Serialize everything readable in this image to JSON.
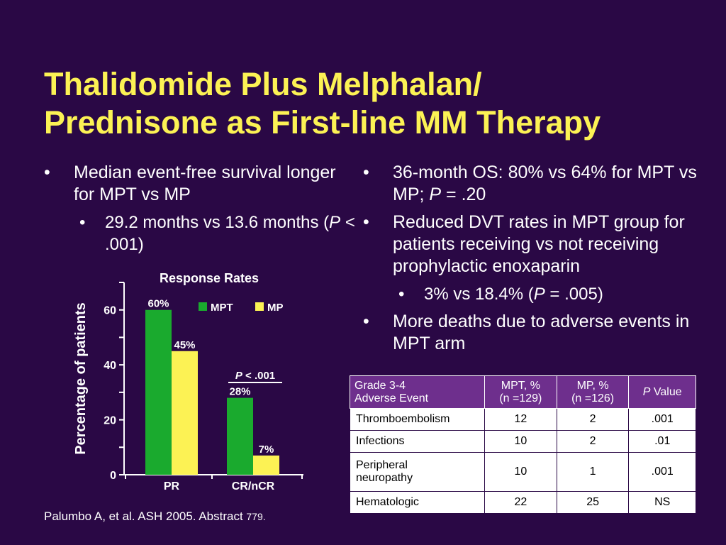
{
  "title": {
    "line1": "Thalidomide Plus Melphalan/",
    "line2": "Prednisone as First-line MM Therapy"
  },
  "left_bullets": {
    "b1": "Median event-free survival longer for MPT vs MP",
    "sb1_pre": "29.2 months vs 13.6 months (",
    "sb1_p": "P",
    "sb1_post": " < .001)"
  },
  "right_bullets": {
    "b1_pre": "36-month OS: 80% vs 64% for MPT vs MP; ",
    "b1_p": "P",
    "b1_post": " = .20",
    "b2": "Reduced DVT rates in MPT group for patients receiving vs not receiving prophylactic enoxaparin",
    "sb1_pre": "3% vs 18.4% (",
    "sb1_p": "P",
    "sb1_post": " = .005)",
    "b3": "More deaths due to adverse events in MPT arm"
  },
  "chart_data": {
    "type": "bar",
    "title": "Response Rates",
    "ylabel": "Percentage of patients",
    "xlabel": "",
    "categories": [
      "PR",
      "CR/nCR"
    ],
    "series": [
      {
        "name": "MPT",
        "values": [
          60,
          28
        ],
        "labels": [
          "60%",
          "28%"
        ],
        "color": "#1aaa2e"
      },
      {
        "name": "MP",
        "values": [
          45,
          7
        ],
        "labels": [
          "45%",
          "7%"
        ],
        "color": "#fcf254"
      }
    ],
    "ylim": [
      0,
      70
    ],
    "yticks": [
      0,
      20,
      40,
      60
    ],
    "legend": "top-right",
    "annotation": {
      "p": "P",
      "text": " < .001",
      "category": "CR/nCR"
    }
  },
  "table": {
    "headers": {
      "event_line1": "Grade 3-4",
      "event_line2": "Adverse Event",
      "mpt_line1": "MPT, %",
      "mpt_line2": "(n =129)",
      "mp_line1": "MP, %",
      "mp_line2": "(n =126)",
      "p_italic": "P",
      "p_rest": " Value"
    },
    "rows": [
      {
        "event": "Thromboembolism",
        "event2": "",
        "mpt": "12",
        "mp": "2",
        "p": ".001"
      },
      {
        "event": "Infections",
        "event2": "",
        "mpt": "10",
        "mp": "2",
        "p": ".01"
      },
      {
        "event": "Peripheral",
        "event2": "neuropathy",
        "mpt": "10",
        "mp": "1",
        "p": ".001"
      },
      {
        "event": "Hematologic",
        "event2": "",
        "mpt": "22",
        "mp": "25",
        "p": "NS"
      }
    ]
  },
  "citation": {
    "main": "Palumbo A, et al. ASH 2005. Abstract ",
    "num": "779."
  },
  "colors": {
    "background": "#2a0845",
    "title": "#fcf254",
    "mpt": "#1aaa2e",
    "mp": "#fcf254",
    "table_header": "#6e2f8d"
  }
}
